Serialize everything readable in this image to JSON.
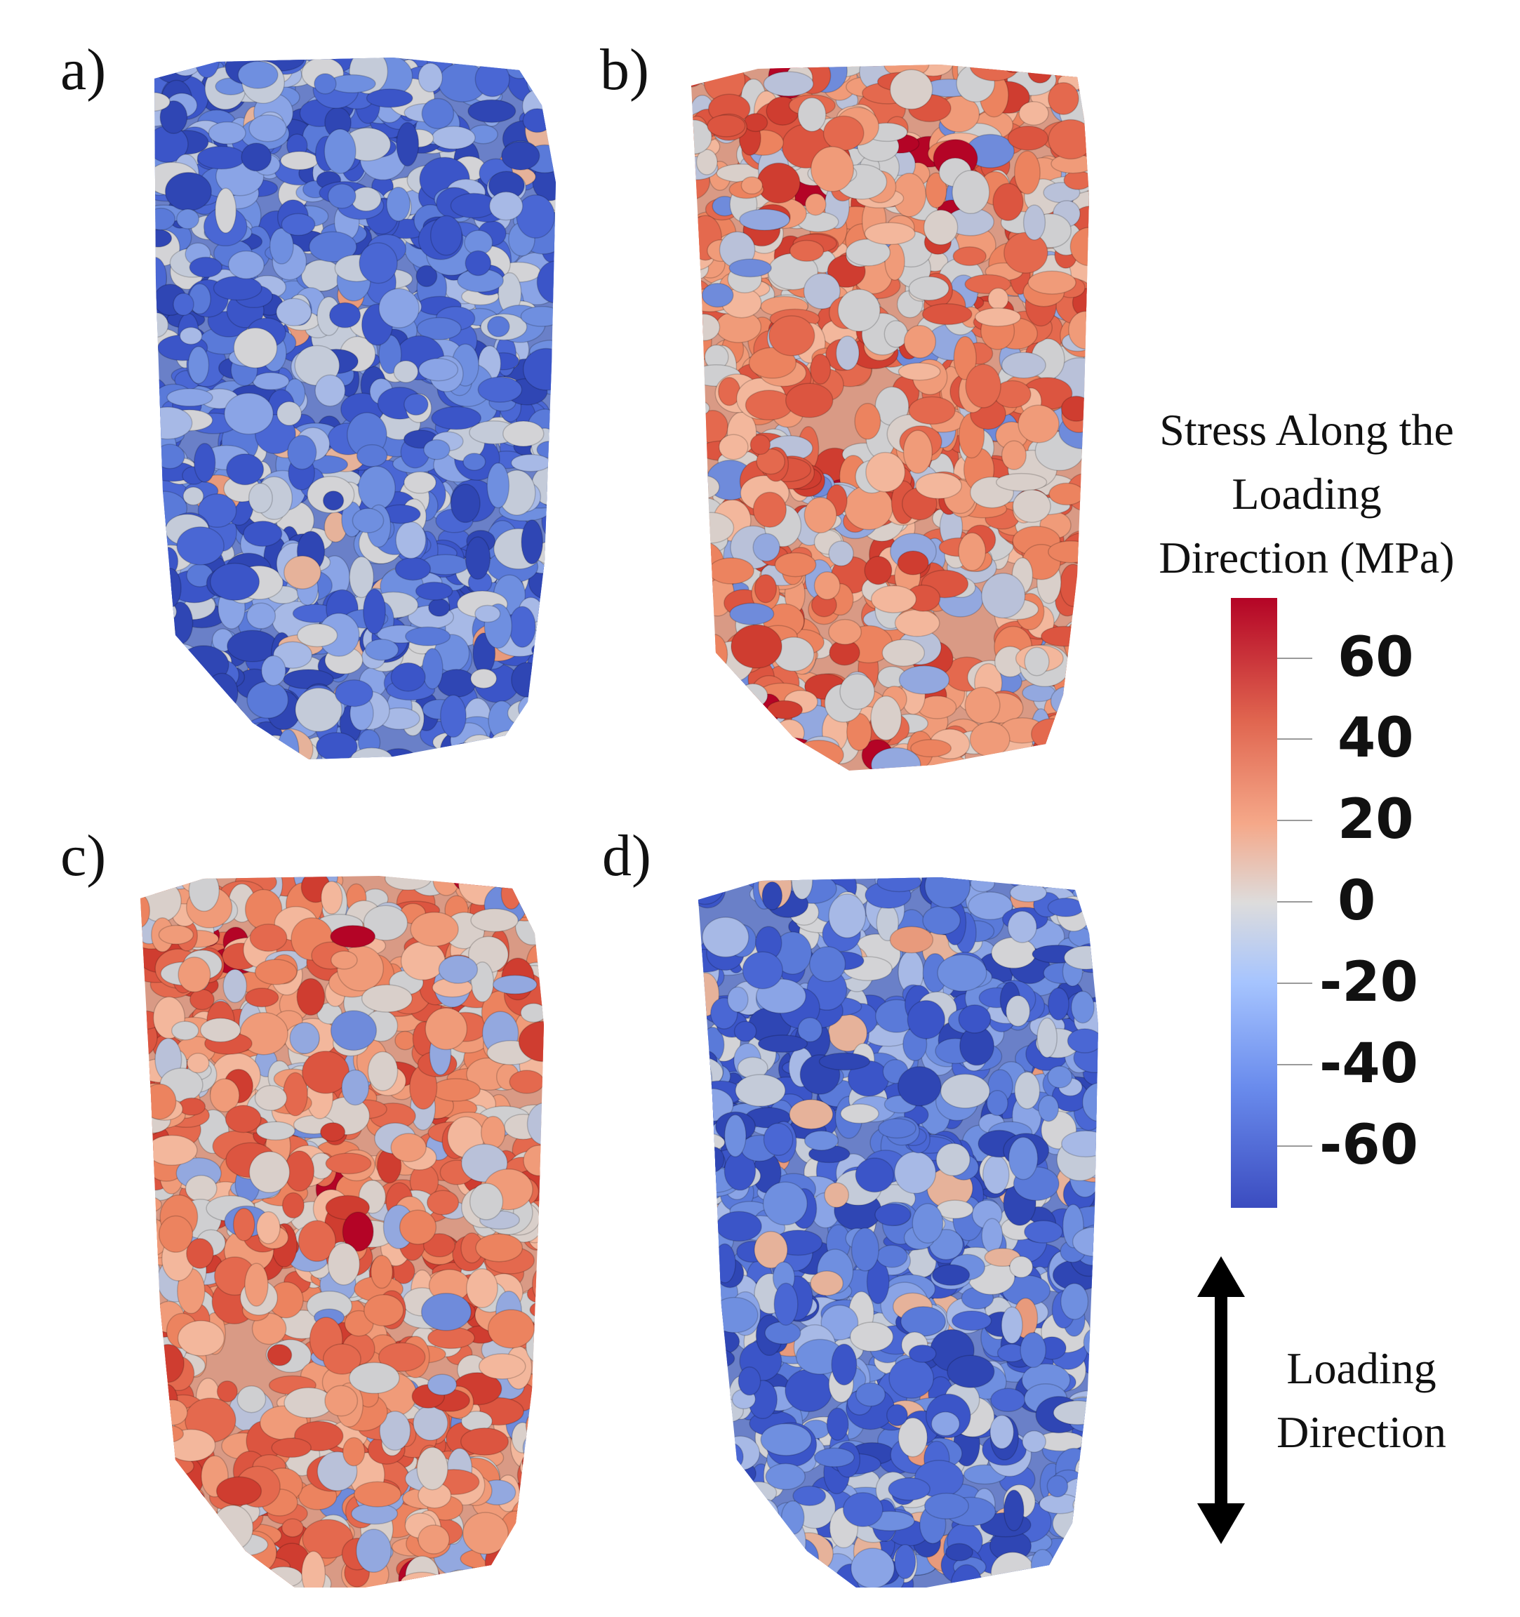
{
  "panels": [
    {
      "label": "a)",
      "scheme": "blue"
    },
    {
      "label": "b)",
      "scheme": "red"
    },
    {
      "label": "c)",
      "scheme": "red"
    },
    {
      "label": "d)",
      "scheme": "blue"
    }
  ],
  "legend": {
    "title_lines": [
      "Stress Along the",
      "Loading",
      "Direction (MPa)"
    ],
    "ticks": [
      "60",
      "40",
      "20",
      "0",
      "-20",
      "-40",
      "-60"
    ],
    "colormap": "coolwarm",
    "colors": {
      "max": "#b40426",
      "mid": "#dddcdc",
      "min": "#3b4cc0"
    }
  },
  "direction": {
    "lines": [
      "Loading",
      "Direction"
    ],
    "icon": "double-arrow-vertical"
  }
}
